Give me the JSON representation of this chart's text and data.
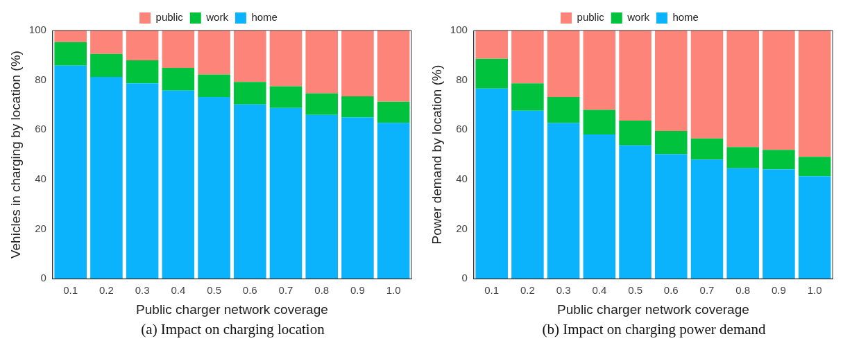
{
  "chart_data": [
    {
      "type": "bar",
      "stacked": true,
      "xlabel": "Public charger network coverage",
      "ylabel": "Vehicles in charging by location (%)",
      "categories": [
        "0.1",
        "0.2",
        "0.3",
        "0.4",
        "0.5",
        "0.6",
        "0.7",
        "0.8",
        "0.9",
        "1.0"
      ],
      "ylim": [
        0,
        100
      ],
      "yticks": [
        0,
        20,
        40,
        60,
        80,
        100
      ],
      "grid": false,
      "legend": "top",
      "annotations": [
        "(a) Impact on charging location"
      ],
      "series": [
        {
          "name": "home",
          "color": "#0bb2fc",
          "values": [
            85.8,
            81.3,
            78.7,
            75.8,
            73.2,
            70.2,
            68.8,
            66.0,
            65.0,
            62.8
          ]
        },
        {
          "name": "work",
          "color": "#00c23c",
          "values": [
            9.5,
            9.3,
            9.3,
            9.1,
            9.1,
            9.1,
            8.7,
            8.7,
            8.5,
            8.5
          ]
        },
        {
          "name": "public",
          "color": "#fc8478",
          "values": [
            4.7,
            9.4,
            12.0,
            15.1,
            17.7,
            20.7,
            22.5,
            25.3,
            26.5,
            28.7
          ]
        }
      ]
    },
    {
      "type": "bar",
      "stacked": true,
      "xlabel": "Public charger network coverage",
      "ylabel": "Power demand by location (%)",
      "categories": [
        "0.1",
        "0.2",
        "0.3",
        "0.4",
        "0.5",
        "0.6",
        "0.7",
        "0.8",
        "0.9",
        "1.0"
      ],
      "ylim": [
        0,
        100
      ],
      "yticks": [
        0,
        20,
        40,
        60,
        80,
        100
      ],
      "grid": false,
      "legend": "top",
      "annotations": [
        "(b) Impact on charging power demand"
      ],
      "series": [
        {
          "name": "home",
          "color": "#0bb2fc",
          "values": [
            76.6,
            67.7,
            62.7,
            58.1,
            53.7,
            50.2,
            48.0,
            44.5,
            44.1,
            41.3
          ]
        },
        {
          "name": "work",
          "color": "#00c23c",
          "values": [
            12.0,
            11.0,
            10.5,
            9.9,
            10.0,
            9.3,
            8.5,
            8.5,
            7.8,
            7.8
          ]
        },
        {
          "name": "public",
          "color": "#fc8478",
          "values": [
            11.4,
            21.3,
            26.8,
            32.0,
            36.3,
            40.5,
            43.5,
            47.0,
            48.1,
            50.9
          ]
        }
      ]
    }
  ]
}
